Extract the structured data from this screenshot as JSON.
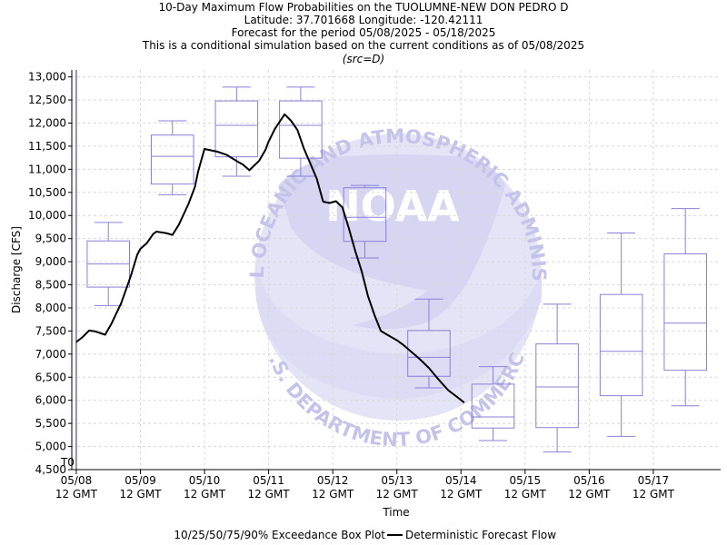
{
  "chart_data": {
    "type": "box",
    "title_lines": [
      "10-Day Maximum Flow Probabilities on the TUOLUMNE-NEW DON PEDRO D",
      "Latitude: 37.701668 Longitude: -120.42111",
      "Forecast for the period 05/08/2025 - 05/18/2025",
      "This is a conditional simulation based on the current conditions as of 05/08/2025"
    ],
    "subtitle": "(src=D)",
    "xlabel": "Time",
    "ylabel": "Discharge [CFS]",
    "ylim": [
      4500,
      13150
    ],
    "yticks": [
      4500,
      5000,
      5500,
      6000,
      6500,
      7000,
      7500,
      8000,
      8500,
      9000,
      9500,
      10000,
      10500,
      11000,
      11500,
      12000,
      12500,
      13000
    ],
    "ytick_labels": [
      "4,500",
      "5,000",
      "5,500",
      "6,000",
      "6,500",
      "7,000",
      "7,500",
      "8,000",
      "8,500",
      "9,000",
      "9,500",
      "10,000",
      "10,500",
      "11,000",
      "11,500",
      "12,000",
      "12,500",
      "13,000"
    ],
    "xlim": [
      -0.07,
      10.05
    ],
    "xticks": [
      {
        "x": 0,
        "date": "05/08",
        "time": "12 GMT"
      },
      {
        "x": 1,
        "date": "05/09",
        "time": "12 GMT"
      },
      {
        "x": 2,
        "date": "05/10",
        "time": "12 GMT"
      },
      {
        "x": 3,
        "date": "05/11",
        "time": "12 GMT"
      },
      {
        "x": 4,
        "date": "05/12",
        "time": "12 GMT"
      },
      {
        "x": 5,
        "date": "05/13",
        "time": "12 GMT"
      },
      {
        "x": 6,
        "date": "05/14",
        "time": "12 GMT"
      },
      {
        "x": 7,
        "date": "05/15",
        "time": "12 GMT"
      },
      {
        "x": 8,
        "date": "05/16",
        "time": "12 GMT"
      },
      {
        "x": 9,
        "date": "05/17",
        "time": "12 GMT"
      }
    ],
    "t0_label": "T0",
    "t0_x": 0,
    "boxes": [
      {
        "x": 0.5,
        "p10": 8050,
        "p25": 8450,
        "p50": 8950,
        "p75": 9450,
        "p90": 9850
      },
      {
        "x": 1.5,
        "p10": 10450,
        "p25": 10680,
        "p50": 11280,
        "p75": 11740,
        "p90": 12050
      },
      {
        "x": 2.5,
        "p10": 10850,
        "p25": 11270,
        "p50": 11950,
        "p75": 12480,
        "p90": 12780
      },
      {
        "x": 3.5,
        "p10": 10850,
        "p25": 11240,
        "p50": 11950,
        "p75": 12480,
        "p90": 12780
      },
      {
        "x": 4.5,
        "p10": 9080,
        "p25": 9440,
        "p50": 9960,
        "p75": 10600,
        "p90": 10650
      },
      {
        "x": 5.5,
        "p10": 6270,
        "p25": 6520,
        "p50": 6930,
        "p75": 7510,
        "p90": 8190
      },
      {
        "x": 6.5,
        "p10": 5130,
        "p25": 5400,
        "p50": 5640,
        "p75": 6350,
        "p90": 6730
      },
      {
        "x": 7.5,
        "p10": 4880,
        "p25": 5410,
        "p50": 6290,
        "p75": 7220,
        "p90": 8080
      },
      {
        "x": 8.5,
        "p10": 5220,
        "p25": 6100,
        "p50": 7060,
        "p75": 8290,
        "p90": 9620
      },
      {
        "x": 9.5,
        "p10": 5880,
        "p25": 6650,
        "p50": 7670,
        "p75": 9170,
        "p90": 10150
      }
    ],
    "deterministic": {
      "x": [
        0,
        0.1,
        0.2,
        0.3,
        0.45,
        0.55,
        0.7,
        0.85,
        0.95,
        1.0,
        1.1,
        1.2,
        1.25,
        1.4,
        1.5,
        1.6,
        1.75,
        1.85,
        1.9,
        2.0,
        2.2,
        2.35,
        2.5,
        2.6,
        2.7,
        2.85,
        2.95,
        3.0,
        3.1,
        3.25,
        3.35,
        3.45,
        3.55,
        3.75,
        3.85,
        3.95,
        4.05,
        4.15,
        4.25,
        4.35,
        4.45,
        4.55,
        4.65,
        4.75,
        4.85,
        5.0,
        5.1,
        5.2,
        5.35,
        5.5,
        5.65,
        5.8,
        5.95,
        6.05
      ],
      "y": [
        7260,
        7370,
        7510,
        7490,
        7420,
        7660,
        8100,
        8690,
        9150,
        9280,
        9400,
        9600,
        9650,
        9620,
        9580,
        9800,
        10250,
        10620,
        10950,
        11440,
        11380,
        11310,
        11180,
        11100,
        10980,
        11180,
        11420,
        11600,
        11880,
        12190,
        12050,
        11850,
        11450,
        10800,
        10300,
        10270,
        10310,
        10180,
        9730,
        9240,
        8800,
        8250,
        7850,
        7500,
        7420,
        7300,
        7200,
        7080,
        6900,
        6700,
        6450,
        6220,
        6060,
        5950
      ]
    },
    "legend": {
      "box_label": "10/25/50/75/90% Exceedance Box Plot",
      "line_label": "Deterministic Forecast Flow"
    },
    "grid": true,
    "colors": {
      "box": "#8880d8",
      "line": "#000000",
      "t0_line": "#303070",
      "grid": "#d8d8d8",
      "watermark": "#d8d8f4",
      "watermark_text": "#c2c2ea"
    }
  },
  "watermark": {
    "circle_text": "NATIONAL OCEANIC AND ATMOSPHERIC ADMINISTRATION",
    "bottom_text": "U.S. DEPARTMENT OF COMMERCE",
    "logo_text": "NOAA"
  }
}
